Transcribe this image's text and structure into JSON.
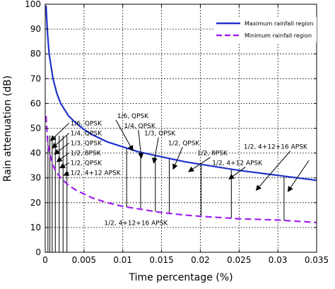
{
  "chart_data": {
    "type": "line",
    "xlabel": "Time percentage (%)",
    "ylabel": "Rain attenuation (dB)",
    "xlim": [
      0,
      0.035
    ],
    "ylim": [
      0,
      100
    ],
    "x_ticks": [
      "0",
      "0.005",
      "0.01",
      "0.015",
      "0.02",
      "0.025",
      "0.03",
      "0.035"
    ],
    "y_ticks": [
      "0",
      "10",
      "20",
      "30",
      "40",
      "50",
      "60",
      "70",
      "80",
      "90",
      "100"
    ],
    "grid": true,
    "legend_position": "top-right",
    "series": [
      {
        "name": "Maximum rainfall region",
        "color": "#1f33cc",
        "style": "solid",
        "x": [
          0.0001,
          0.0003,
          0.0005,
          0.001,
          0.0015,
          0.002,
          0.003,
          0.004,
          0.005,
          0.006,
          0.008,
          0.01,
          0.012,
          0.015,
          0.018,
          0.02,
          0.025,
          0.03,
          0.035
        ],
        "y": [
          99.5,
          88,
          80,
          70,
          64,
          60,
          55,
          52,
          49.5,
          47.5,
          44.5,
          42.5,
          40.5,
          38.5,
          36.5,
          35.5,
          33,
          31,
          29
        ]
      },
      {
        "name": "Minimum rainfall region",
        "color": "#a020f0",
        "style": "dashed",
        "x": [
          0.0001,
          0.0003,
          0.0005,
          0.001,
          0.0015,
          0.002,
          0.003,
          0.004,
          0.005,
          0.006,
          0.008,
          0.01,
          0.012,
          0.015,
          0.018,
          0.02,
          0.025,
          0.03,
          0.035
        ],
        "y": [
          55,
          45,
          40.5,
          35,
          32,
          30,
          27,
          25,
          23.5,
          22,
          20,
          18.5,
          17.5,
          16,
          15,
          14.5,
          13.5,
          13,
          12
        ]
      }
    ],
    "vertical_lines_x": [
      0.00035,
      0.0006,
      0.0009,
      0.0013,
      0.0018,
      0.0023,
      0.0028,
      0.0105,
      0.0123,
      0.0142,
      0.016,
      0.0201,
      0.024,
      0.0308
    ],
    "annotations": [
      {
        "text": "1/6, QPSK",
        "x": 0.00325,
        "y": 51.2,
        "arrow_to": [
          0.0007,
          45
        ]
      },
      {
        "text": "1/4, QPSK",
        "x": 0.00325,
        "y": 47.2,
        "arrow_to": [
          0.0009,
          42
        ]
      },
      {
        "text": "1/3, QPSK",
        "x": 0.00325,
        "y": 43.2,
        "arrow_to": [
          0.0012,
          39.5
        ]
      },
      {
        "text": "1/2, 8PSK",
        "x": 0.00325,
        "y": 39.2,
        "arrow_to": [
          0.0015,
          36.5
        ]
      },
      {
        "text": "1/2, QPSK",
        "x": 0.00325,
        "y": 35.2,
        "arrow_to": [
          0.0019,
          34
        ]
      },
      {
        "text": "1/2, 4+12 APSK",
        "x": 0.00325,
        "y": 31.2,
        "arrow_to": [
          0.0024,
          31
        ]
      },
      {
        "text": "1/6, QPSK",
        "x": 0.0113,
        "y": 54.2,
        "arrow_to": [
          0.0113,
          41
        ]
      },
      {
        "text": "1/4, QPSK",
        "x": 0.0142,
        "y": 50.2,
        "arrow_to": [
          0.0124,
          38
        ]
      },
      {
        "text": "1/3, QPSK",
        "x": 0.0168,
        "y": 47.2,
        "arrow_to": [
          0.014,
          36
        ]
      },
      {
        "text": "1/2, QPSK",
        "x": 0.0199,
        "y": 43.2,
        "arrow_to": [
          0.0165,
          33.5
        ]
      },
      {
        "text": "1/2, 8PSK",
        "x": 0.0235,
        "y": 39.2,
        "arrow_to": [
          0.0185,
          32.5
        ]
      },
      {
        "text": "1/2, 4+12 APSK",
        "x": 0.028,
        "y": 35.2,
        "arrow_to": [
          0.0237,
          29.5
        ]
      },
      {
        "text": "1/2, 4+12+16 APSK",
        "x": 0.0338,
        "y": 41.7,
        "arrow_to": [
          0.0272,
          25
        ]
      },
      {
        "text": "1/2, 4+12+16 APSK",
        "x": 0.0117,
        "y": 10.9,
        "arrow_to": null
      }
    ],
    "extra_arrows": [
      {
        "from": [
          0.034,
          37
        ],
        "to": [
          0.0313,
          24.5
        ]
      }
    ]
  }
}
